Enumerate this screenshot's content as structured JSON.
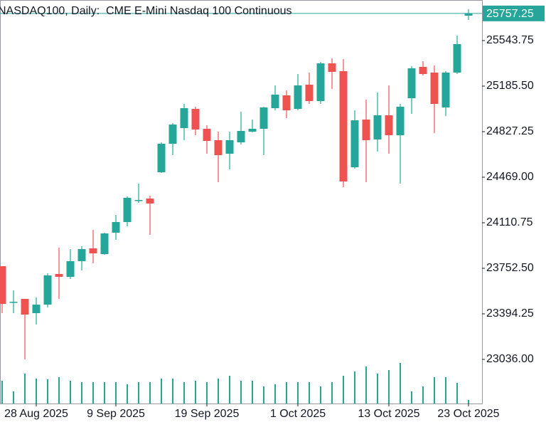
{
  "chart_data": {
    "type": "candlestick",
    "title": "NASDAQ100, Daily:  CME E-Mini Nasdaq 100 Continuous",
    "categories": [
      null,
      null,
      null,
      "28 Aug 2025",
      null,
      null,
      null,
      null,
      null,
      null,
      "9 Sep 2025",
      null,
      null,
      null,
      null,
      null,
      null,
      null,
      "19 Sep 2025",
      null,
      null,
      null,
      null,
      null,
      null,
      null,
      "1 Oct 2025",
      null,
      null,
      null,
      null,
      null,
      null,
      null,
      "13 Oct 2025",
      null,
      null,
      null,
      null,
      null,
      null,
      "23 Oct 2025"
    ],
    "open": [
      23769.2,
      23483.6,
      23511.6,
      23399.6,
      23466.7,
      23707.6,
      23685.0,
      23808.4,
      23909.1,
      23864.3,
      24032.3,
      24116.2,
      24284.2,
      24301.0,
      24508.1,
      24732.0,
      24855.2,
      25006.3,
      24849.6,
      24760.0,
      24653.6,
      24743.2,
      24827.2,
      24849.6,
      25011.9,
      25112.7,
      25006.3,
      25196.6,
      25067.9,
      25364.6,
      25303.0,
      24547.3,
      24922.3,
      24765.6,
      24955.9,
      24799.2,
      25090.3,
      25336.6,
      25291.8,
      25017.5,
      25291.8,
      25739.6
    ],
    "high": [
      23769.2,
      23578.8,
      23511.6,
      23522.8,
      23713.2,
      23914.7,
      23903.5,
      23925.9,
      24054.6,
      24032.3,
      24172.2,
      24317.8,
      24418.5,
      24323.4,
      24743.2,
      24894.3,
      25045.5,
      25023.1,
      24877.6,
      24827.2,
      24827.2,
      24983.9,
      24922.3,
      25023.1,
      25191.0,
      25151.9,
      25280.6,
      25291.8,
      25375.8,
      25403.8,
      25398.2,
      24995.1,
      25079.1,
      25135.0,
      25191.0,
      25045.5,
      25342.2,
      25381.4,
      25347.8,
      25303.0,
      25582.9,
      25790.0
    ],
    "low": [
      23399.6,
      23399.6,
      23035.8,
      23310.0,
      23444.4,
      23511.6,
      23668.4,
      23735.6,
      23791.6,
      23858.7,
      23976.3,
      24082.6,
      24267.4,
      24015.5,
      24502.5,
      24642.4,
      24760.0,
      24799.2,
      24653.6,
      24429.7,
      24530.5,
      24726.4,
      24821.6,
      24642.4,
      24995.1,
      24933.5,
      24995.1,
      25045.5,
      25045.5,
      25163.1,
      24390.5,
      24536.1,
      24429.7,
      24670.4,
      24653.6,
      24418.5,
      24967.1,
      25269.4,
      24816.0,
      24950.3,
      25280.6,
      25706.1
    ],
    "close": [
      23472.4,
      23489.2,
      23388.4,
      23466.7,
      23696.4,
      23685.0,
      23808.4,
      23903.5,
      23869.9,
      24026.7,
      24116.2,
      24306.6,
      24289.8,
      24261.8,
      24732.0,
      24883.1,
      25011.9,
      24844.0,
      24754.4,
      24642.4,
      24760.0,
      24832.8,
      24849.6,
      25017.5,
      25118.3,
      24995.1,
      25191.0,
      25067.9,
      25364.6,
      25297.4,
      24435.3,
      24916.7,
      24760.0,
      24955.9,
      24799.2,
      25023.1,
      25325.4,
      25280.6,
      25045.5,
      25291.8,
      25515.7,
      25757.25
    ],
    "volume": [
      32,
      17,
      42,
      35,
      34,
      37,
      32,
      30,
      30,
      30,
      30,
      27,
      30,
      30,
      35,
      35,
      30,
      32,
      30,
      35,
      39,
      32,
      32,
      24,
      27,
      30,
      30,
      30,
      24,
      30,
      39,
      45,
      52,
      42,
      47,
      57,
      17,
      24,
      37,
      37,
      29,
      5
    ],
    "up_color": "#26a69a",
    "down_color": "#ef5350",
    "ylim": [
      22688.7,
      25862.8
    ],
    "yticks": [
      {
        "value": 23036,
        "label": "23036.00"
      },
      23394.25,
      {
        "value": 23752.5,
        "label": "23752.50"
      },
      24110.75,
      {
        "value": 24469,
        "label": "24469.00"
      },
      24827.25,
      {
        "value": 25185.5,
        "label": "25185.50"
      },
      25543.75
    ]
  }
}
